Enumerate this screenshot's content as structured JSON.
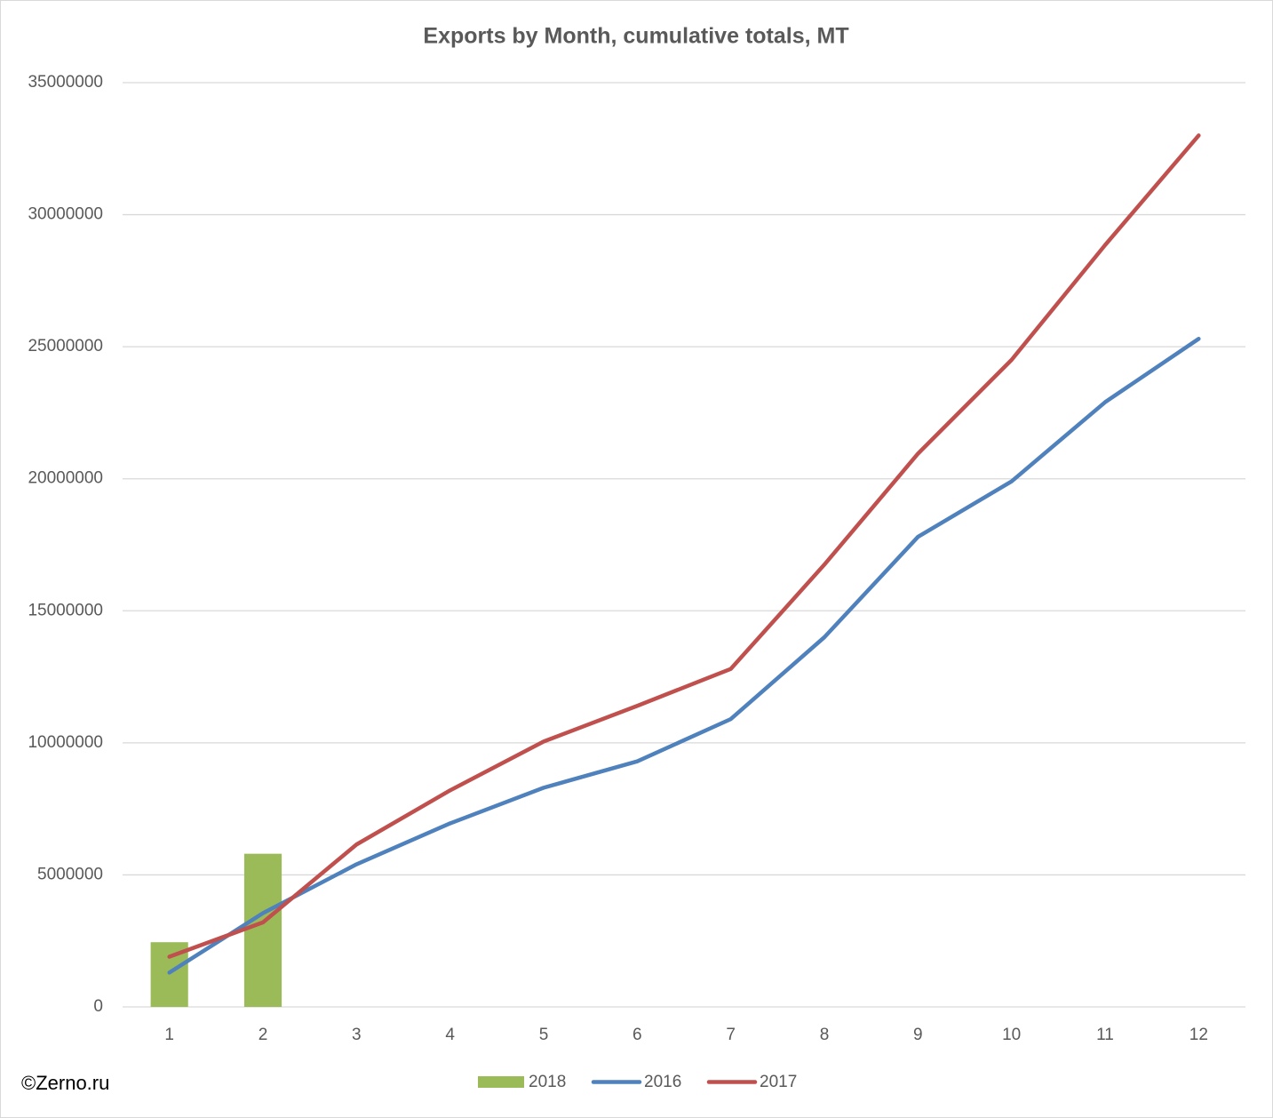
{
  "chart_data": {
    "type": "combo",
    "title": "Exports by Month, cumulative totals, MT",
    "annotation": "©Zerno.ru",
    "categories": [
      "1",
      "2",
      "3",
      "4",
      "5",
      "6",
      "7",
      "8",
      "9",
      "10",
      "11",
      "12"
    ],
    "series": [
      {
        "name": "2018",
        "type": "bar",
        "color": "#9bbb59",
        "values": [
          2450000,
          5800000,
          null,
          null,
          null,
          null,
          null,
          null,
          null,
          null,
          null,
          null
        ]
      },
      {
        "name": "2016",
        "type": "line",
        "color": "#4f81bd",
        "values": [
          1300000,
          3550000,
          5400000,
          6950000,
          8300000,
          9300000,
          10900000,
          14000000,
          17800000,
          19900000,
          22900000,
          25300000
        ]
      },
      {
        "name": "2017",
        "type": "line",
        "color": "#c0504d",
        "values": [
          1900000,
          3200000,
          6150000,
          8200000,
          10050000,
          11400000,
          12800000,
          16750000,
          20950000,
          24500000,
          28850000,
          33000000
        ]
      }
    ],
    "ylim": [
      0,
      35000000
    ],
    "yticks": [
      0,
      5000000,
      10000000,
      15000000,
      20000000,
      25000000,
      30000000,
      35000000
    ],
    "grid": true,
    "legend": "bottom"
  }
}
